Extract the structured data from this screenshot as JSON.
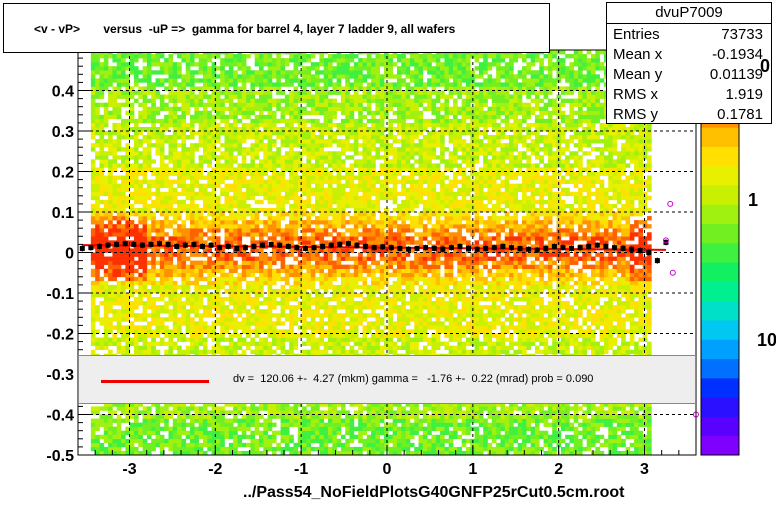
{
  "title": "<v - vP>       versus  -uP =>  gamma for barrel 4, layer 7 ladder 9, all wafers",
  "footer": "../Pass54_NoFieldPlotsG40GNFP25rCut0.5cm.root",
  "stats": {
    "name": "dvuP7009",
    "rows": [
      {
        "key": "Entries",
        "value": "73733"
      },
      {
        "key": "Mean x",
        "value": "-0.1934"
      },
      {
        "key": "Mean y",
        "value": "0.01139"
      },
      {
        "key": "RMS x",
        "value": "1.919"
      },
      {
        "key": "RMS y",
        "value": "0.1781"
      }
    ]
  },
  "fit": {
    "text": "dv =  120.06 +-  4.27 (mkm) gamma =   -1.76 +-  0.22 (mrad) prob = 0.090",
    "line_color": "#ee0000"
  },
  "palette": {
    "labels": [
      "0",
      "1",
      "10"
    ],
    "colors": [
      "#7f00ff",
      "#5a00ff",
      "#2a10ff",
      "#0030ff",
      "#0070ff",
      "#00a0ff",
      "#00c8f0",
      "#00e0c8",
      "#00f090",
      "#10f060",
      "#40f040",
      "#70f020",
      "#a0f010",
      "#c8f000",
      "#e8f000",
      "#ffe000",
      "#ffc000",
      "#ff9000",
      "#ff6000",
      "#ff3000",
      "#ff0000"
    ]
  },
  "chart_data": {
    "type": "heatmap",
    "xlim": [
      -3.6,
      3.6
    ],
    "ylim": [
      -0.5,
      0.5
    ],
    "x_ticks": [
      "-3",
      "-2",
      "-1",
      "0",
      "1",
      "2",
      "3"
    ],
    "y_ticks": [
      "-0.5",
      "-0.4",
      "-0.3",
      "-0.2",
      "-0.1",
      "0",
      "0.1",
      "0.2",
      "0.3",
      "0.4"
    ],
    "grid": true,
    "fit_line": {
      "slope": -0.00176,
      "intercept": 0.01206
    },
    "profile_x": [
      -3.55,
      -3.45,
      -3.35,
      -3.25,
      -3.15,
      -3.05,
      -2.95,
      -2.85,
      -2.75,
      -2.65,
      -2.55,
      -2.45,
      -2.35,
      -2.25,
      -2.15,
      -2.05,
      -1.95,
      -1.85,
      -1.75,
      -1.65,
      -1.55,
      -1.45,
      -1.35,
      -1.25,
      -1.15,
      -1.05,
      -0.95,
      -0.85,
      -0.75,
      -0.65,
      -0.55,
      -0.45,
      -0.35,
      -0.25,
      -0.15,
      -0.05,
      0.05,
      0.15,
      0.25,
      0.35,
      0.45,
      0.55,
      0.65,
      0.75,
      0.85,
      0.95,
      1.05,
      1.15,
      1.25,
      1.35,
      1.45,
      1.55,
      1.65,
      1.75,
      1.85,
      1.95,
      2.05,
      2.15,
      2.25,
      2.35,
      2.45,
      2.55,
      2.65,
      2.75,
      2.85,
      2.95,
      3.05,
      3.15,
      3.25
    ],
    "profile_y": [
      0.01,
      0.012,
      0.015,
      0.018,
      0.02,
      0.022,
      0.02,
      0.018,
      0.02,
      0.022,
      0.02,
      0.015,
      0.018,
      0.02,
      0.015,
      0.018,
      0.012,
      0.015,
      0.01,
      0.012,
      0.015,
      0.018,
      0.02,
      0.018,
      0.015,
      0.012,
      0.01,
      0.012,
      0.015,
      0.018,
      0.02,
      0.022,
      0.018,
      0.015,
      0.012,
      0.014,
      0.012,
      0.01,
      0.008,
      0.01,
      0.012,
      0.01,
      0.008,
      0.012,
      0.015,
      0.01,
      0.008,
      0.01,
      0.012,
      0.015,
      0.012,
      0.01,
      0.008,
      0.006,
      0.01,
      0.015,
      0.012,
      0.01,
      0.012,
      0.015,
      0.018,
      0.015,
      0.012,
      0.01,
      0.008,
      0.005,
      0.0,
      -0.02,
      0.025
    ],
    "outliers": [
      {
        "x": 3.3,
        "y": 0.12
      },
      {
        "x": 3.33,
        "y": -0.05
      },
      {
        "x": 3.25,
        "y": 0.03
      },
      {
        "x": 3.6,
        "y": -0.4
      }
    ]
  }
}
